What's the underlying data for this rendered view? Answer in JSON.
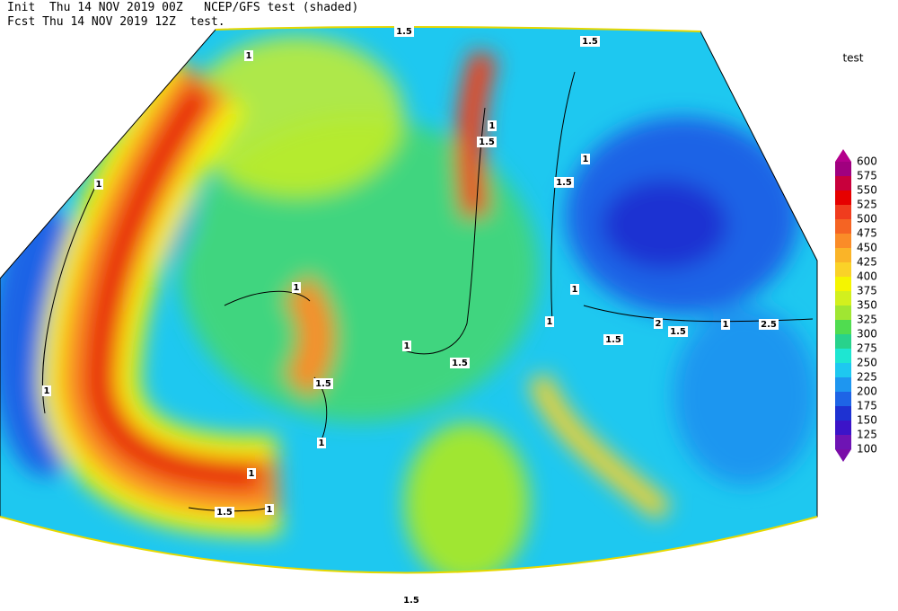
{
  "header": {
    "line1": "Init  Thu 14 NOV 2019 00Z   NCEP/GFS test (shaded)",
    "line2": "Fcst Thu 14 NOV 2019 12Z  test."
  },
  "legend": {
    "title": "test",
    "levels": [
      100,
      125,
      150,
      175,
      200,
      225,
      250,
      275,
      300,
      325,
      350,
      375,
      400,
      425,
      450,
      475,
      500,
      525,
      550,
      575,
      600
    ],
    "colors": [
      "#7a0da8",
      "#6e14b4",
      "#3c14c8",
      "#1e32d2",
      "#1e64e6",
      "#1e96f0",
      "#1ec8f0",
      "#1ee6d2",
      "#28d28c",
      "#50dc50",
      "#a0e632",
      "#d2f01e",
      "#f5f500",
      "#fad228",
      "#fab428",
      "#fa8c28",
      "#f56423",
      "#f03c1e",
      "#e60000",
      "#c8003c",
      "#a0007f",
      "#b4008c"
    ]
  },
  "contour_labels": [
    "1.5",
    "1",
    "1.5",
    "1",
    "1",
    "1",
    "1.5",
    "1",
    "1",
    "1.5",
    "1",
    "1",
    "1.5",
    "1",
    "1.5",
    "2",
    "1.5",
    "1",
    "2.5",
    "1.5",
    "1",
    "1.5",
    "1",
    "1",
    "1.5"
  ]
}
